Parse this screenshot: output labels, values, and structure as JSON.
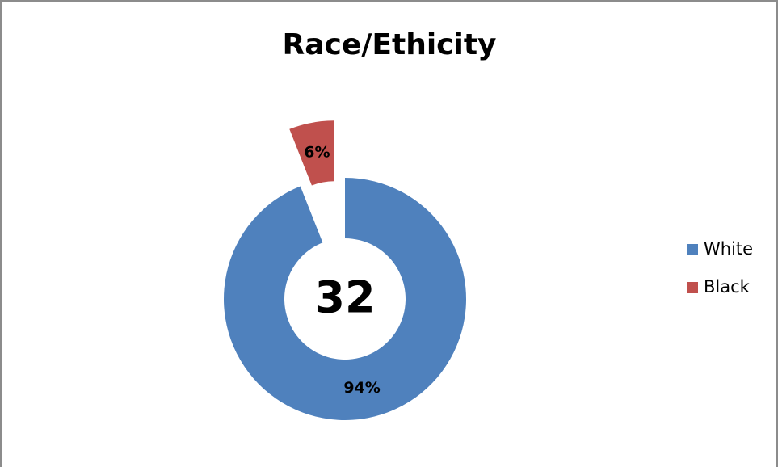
{
  "chart_data": {
    "type": "donut",
    "title": "Race/Ethicity",
    "center_label": "32",
    "categories": [
      "White",
      "Black"
    ],
    "values": [
      94,
      6
    ],
    "value_labels": [
      "94%",
      "6%"
    ],
    "colors": [
      "#4f81bd",
      "#c0504d"
    ],
    "exploded": [
      false,
      true
    ],
    "legend": "right"
  }
}
